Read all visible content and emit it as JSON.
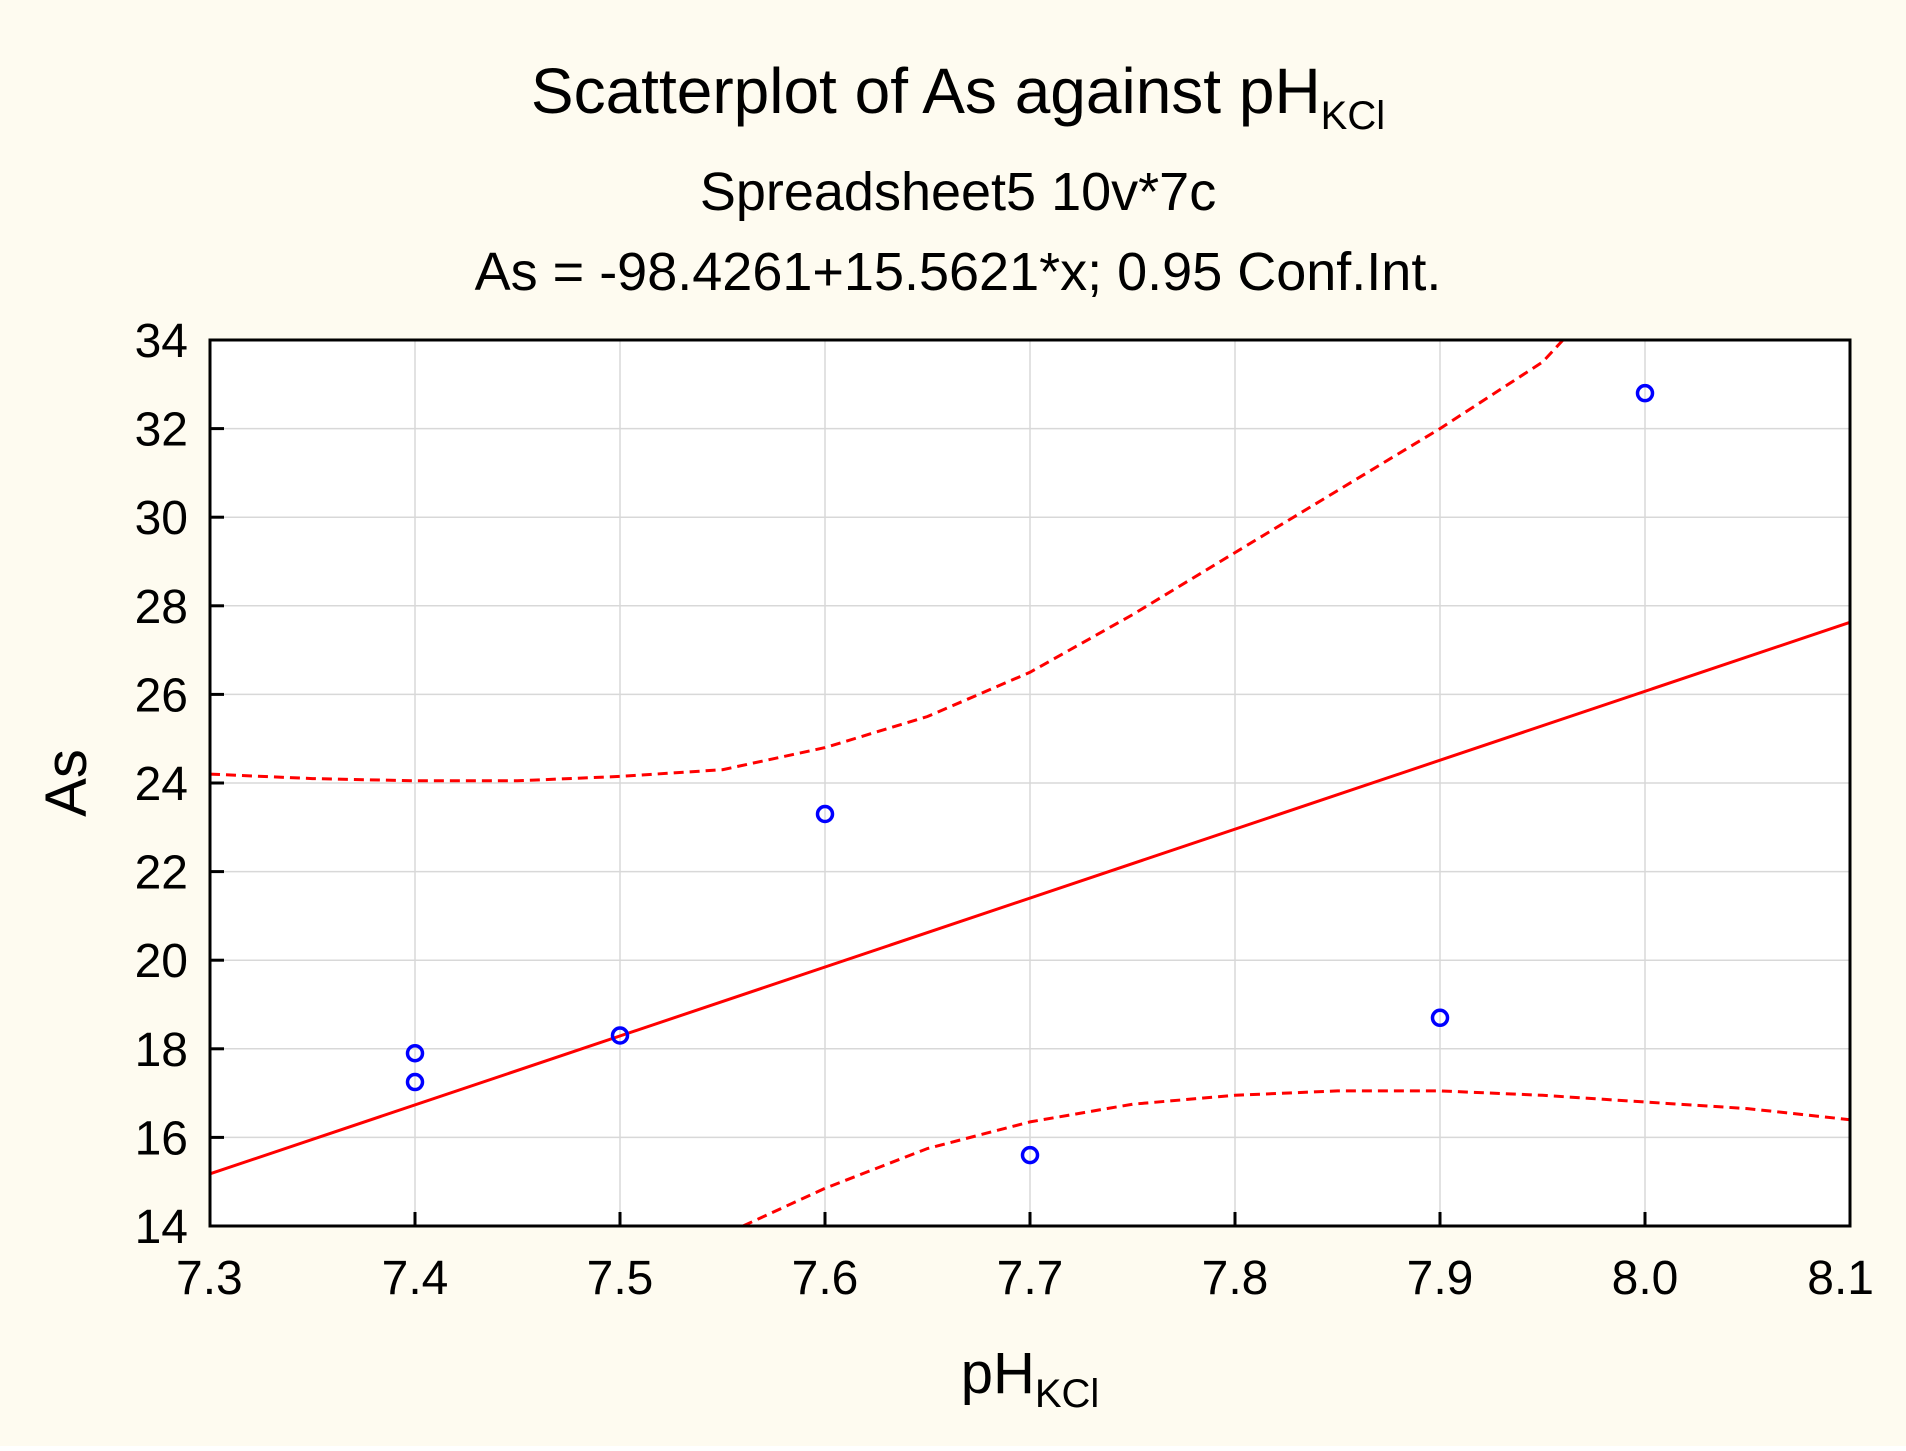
{
  "chart_data": {
    "type": "scatter",
    "title": {
      "main": "Scatterplot of As against pH",
      "subscript": "KCl"
    },
    "subtitle_lines": [
      "Spreadsheet5 10v*7c",
      "As = -98.4261+15.5621*x; 0.95 Conf.Int."
    ],
    "xlabel": {
      "main": "pH",
      "subscript": "KCl"
    },
    "ylabel": "As",
    "xlim": [
      7.3,
      8.1
    ],
    "ylim": [
      14,
      34
    ],
    "x_ticks": [
      "7.3",
      "7.4",
      "7.5",
      "7.6",
      "7.7",
      "7.8",
      "7.9",
      "8.0",
      "8.1"
    ],
    "y_ticks": [
      "14",
      "16",
      "18",
      "20",
      "22",
      "24",
      "26",
      "28",
      "30",
      "32",
      "34"
    ],
    "grid": true,
    "points": [
      {
        "x": 7.4,
        "y": 17.9
      },
      {
        "x": 7.4,
        "y": 17.25
      },
      {
        "x": 7.5,
        "y": 18.3
      },
      {
        "x": 7.6,
        "y": 23.3
      },
      {
        "x": 7.7,
        "y": 15.6
      },
      {
        "x": 7.9,
        "y": 18.7
      },
      {
        "x": 8.0,
        "y": 32.8
      }
    ],
    "regression": {
      "intercept": -98.4261,
      "slope": 15.5621
    },
    "conf_upper": [
      [
        7.3,
        24.2
      ],
      [
        7.35,
        24.1
      ],
      [
        7.4,
        24.05
      ],
      [
        7.45,
        24.05
      ],
      [
        7.5,
        24.15
      ],
      [
        7.55,
        24.3
      ],
      [
        7.6,
        24.8
      ],
      [
        7.65,
        25.5
      ],
      [
        7.7,
        26.5
      ],
      [
        7.75,
        27.8
      ],
      [
        7.8,
        29.2
      ],
      [
        7.85,
        30.6
      ],
      [
        7.9,
        32.0
      ],
      [
        7.95,
        33.5
      ],
      [
        7.96,
        34.0
      ]
    ],
    "conf_lower": [
      [
        7.56,
        14.0
      ],
      [
        7.6,
        14.85
      ],
      [
        7.65,
        15.75
      ],
      [
        7.7,
        16.35
      ],
      [
        7.75,
        16.75
      ],
      [
        7.8,
        16.95
      ],
      [
        7.85,
        17.05
      ],
      [
        7.9,
        17.05
      ],
      [
        7.95,
        16.95
      ],
      [
        8.0,
        16.8
      ],
      [
        8.05,
        16.65
      ],
      [
        8.1,
        16.4
      ]
    ],
    "colors": {
      "points": "#0000ff",
      "fit": "#ff0000",
      "background": "#fefbf0",
      "grid": "#d8d8d8"
    }
  }
}
